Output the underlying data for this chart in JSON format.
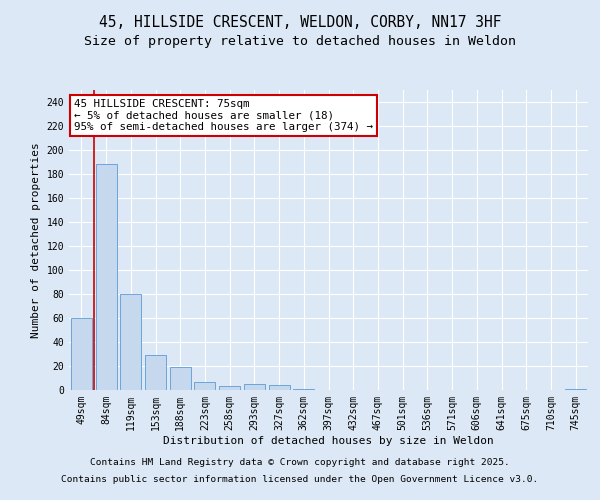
{
  "title_line1": "45, HILLSIDE CRESCENT, WELDON, CORBY, NN17 3HF",
  "title_line2": "Size of property relative to detached houses in Weldon",
  "xlabel": "Distribution of detached houses by size in Weldon",
  "ylabel": "Number of detached properties",
  "categories": [
    "49sqm",
    "84sqm",
    "119sqm",
    "153sqm",
    "188sqm",
    "223sqm",
    "258sqm",
    "293sqm",
    "327sqm",
    "362sqm",
    "397sqm",
    "432sqm",
    "467sqm",
    "501sqm",
    "536sqm",
    "571sqm",
    "606sqm",
    "641sqm",
    "675sqm",
    "710sqm",
    "745sqm"
  ],
  "values": [
    60,
    188,
    80,
    29,
    19,
    7,
    3,
    5,
    4,
    1,
    0,
    0,
    0,
    0,
    0,
    0,
    0,
    0,
    0,
    0,
    1
  ],
  "bar_color": "#c5d8ed",
  "bar_edge_color": "#5b9bd5",
  "annotation_box_text": "45 HILLSIDE CRESCENT: 75sqm\n← 5% of detached houses are smaller (18)\n95% of semi-detached houses are larger (374) →",
  "annotation_box_edge_color": "#cc0000",
  "annotation_box_face_color": "#ffffff",
  "ylim": [
    0,
    250
  ],
  "yticks": [
    0,
    20,
    40,
    60,
    80,
    100,
    120,
    140,
    160,
    180,
    200,
    220,
    240
  ],
  "bg_color": "#dce8f5",
  "plot_bg_color": "#dce8f5",
  "footer_line1": "Contains HM Land Registry data © Crown copyright and database right 2025.",
  "footer_line2": "Contains public sector information licensed under the Open Government Licence v3.0.",
  "title_fontsize": 10.5,
  "subtitle_fontsize": 9.5,
  "axis_label_fontsize": 8,
  "tick_fontsize": 7,
  "annotation_fontsize": 7.8,
  "footer_fontsize": 6.8,
  "grid_color": "#ffffff",
  "vline_color": "#cc0000",
  "vline_x": 0.5
}
